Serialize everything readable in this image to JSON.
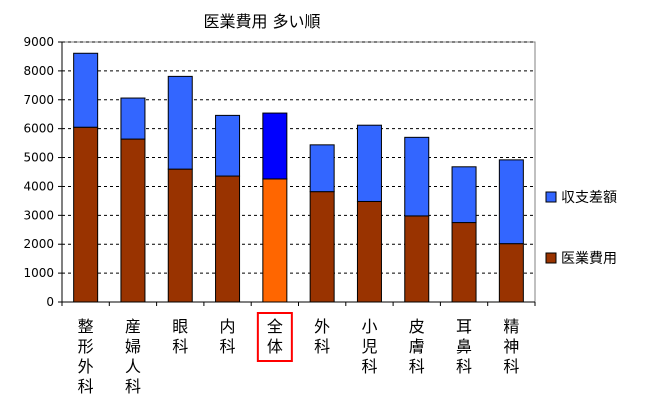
{
  "chart_data": {
    "type": "bar",
    "stacked": true,
    "title": "医業費用 多い順",
    "categories": [
      "整形外科",
      "産婦人科",
      "眼科",
      "内科",
      "全体",
      "外科",
      "小児科",
      "皮膚科",
      "耳鼻科",
      "精神科"
    ],
    "series": [
      {
        "name": "医業費用",
        "color": "#993300",
        "values": [
          6050,
          5640,
          4600,
          4360,
          4260,
          3820,
          3480,
          2980,
          2750,
          2020
        ]
      },
      {
        "name": "収支差額",
        "color": "#3366ff",
        "values": [
          2560,
          1420,
          3210,
          2100,
          2280,
          1620,
          2640,
          2720,
          1930,
          2900
        ]
      }
    ],
    "highlight": {
      "category": "全体",
      "box_color": "#ff0000",
      "series_colors": {
        "医業費用": "#ff6600",
        "収支差額": "#0000ff"
      }
    },
    "ylim": [
      0,
      9000
    ],
    "yticks": [
      0,
      1000,
      2000,
      3000,
      4000,
      5000,
      6000,
      7000,
      8000,
      9000
    ],
    "grid": "dashed horizontal",
    "legend": {
      "position": "right",
      "order": [
        "収支差額",
        "医業費用"
      ]
    },
    "plot_background": "#ffffff"
  }
}
